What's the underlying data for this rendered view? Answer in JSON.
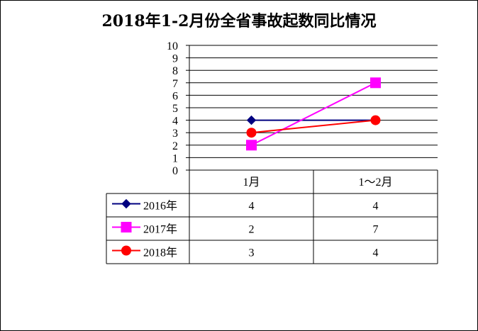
{
  "chart_data": {
    "type": "line",
    "title": "2018年1-2月份全省事故起数同比情况",
    "categories": [
      "1月",
      "1～2月"
    ],
    "ylim": [
      0,
      10
    ],
    "yticks": [
      "0",
      "1",
      "2",
      "3",
      "4",
      "5",
      "6",
      "7",
      "8",
      "9",
      "10"
    ],
    "grid": true,
    "legend": "data-table",
    "series": [
      {
        "name": "2016年",
        "values": [
          4,
          4
        ],
        "color": "#000080",
        "marker": "diamond"
      },
      {
        "name": "2017年",
        "values": [
          2,
          7
        ],
        "color": "#ff00ff",
        "marker": "square"
      },
      {
        "name": "2018年",
        "values": [
          3,
          4
        ],
        "color": "#ff0000",
        "marker": "circle"
      }
    ]
  }
}
